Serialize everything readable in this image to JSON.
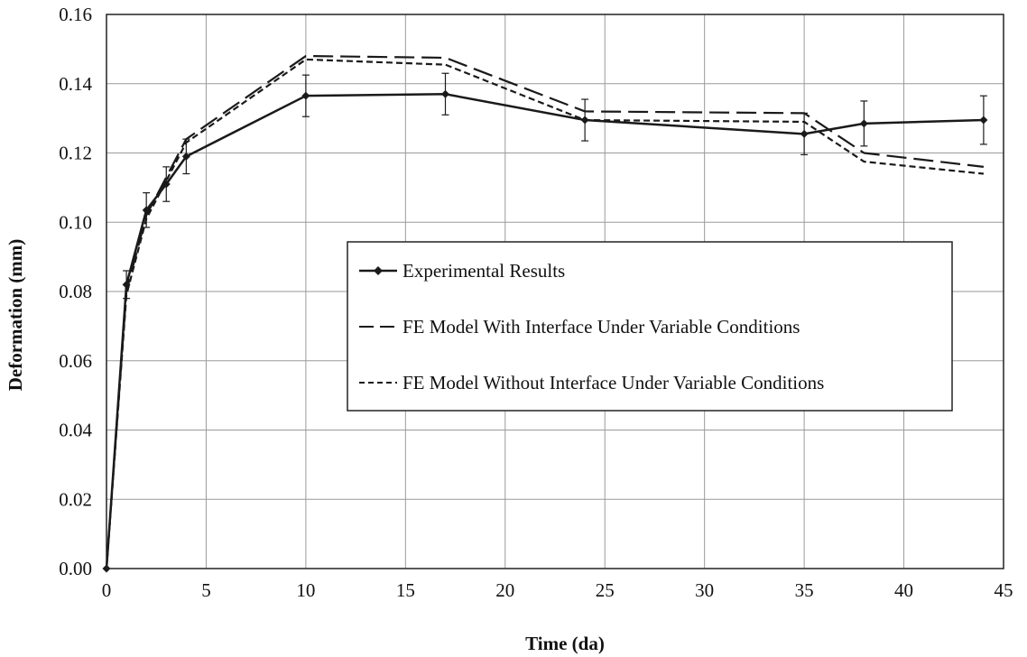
{
  "chart_data": {
    "type": "line",
    "title": "",
    "xlabel": "Time (da)",
    "ylabel": "Deformation (mm)",
    "xlim": [
      0,
      45
    ],
    "ylim": [
      0,
      0.16
    ],
    "x_ticks": [
      "0",
      "5",
      "10",
      "15",
      "20",
      "25",
      "30",
      "35",
      "40",
      "45"
    ],
    "y_ticks": [
      "0.00",
      "0.02",
      "0.04",
      "0.06",
      "0.08",
      "0.10",
      "0.12",
      "0.14",
      "0.16"
    ],
    "grid": true,
    "legend_position": "center-right",
    "series": [
      {
        "name": "Experimental Results",
        "style": "solid-with-markers",
        "color": "#1a1a1a",
        "x": [
          0,
          1,
          2,
          3,
          4,
          10,
          17,
          24,
          35,
          38,
          44
        ],
        "y": [
          0.0,
          0.082,
          0.1035,
          0.111,
          0.119,
          0.1365,
          0.137,
          0.1295,
          0.1255,
          0.1285,
          0.1295
        ],
        "error": [
          0,
          0.004,
          0.005,
          0.005,
          0.005,
          0.006,
          0.006,
          0.006,
          0.006,
          0.0065,
          0.007
        ]
      },
      {
        "name": "FE Model With Interface Under Variable Conditions",
        "style": "long-dash",
        "color": "#1a1a1a",
        "x": [
          0,
          1,
          2,
          3,
          4,
          10,
          17,
          24,
          35,
          38,
          44
        ],
        "y": [
          0.0,
          0.08,
          0.102,
          0.113,
          0.124,
          0.148,
          0.1475,
          0.132,
          0.1315,
          0.12,
          0.116
        ]
      },
      {
        "name": "FE Model Without Interface Under Variable Conditions",
        "style": "short-dash",
        "color": "#1a1a1a",
        "x": [
          0,
          1,
          2,
          3,
          4,
          10,
          17,
          24,
          35,
          38,
          44
        ],
        "y": [
          0.0,
          0.079,
          0.101,
          0.112,
          0.123,
          0.147,
          0.1455,
          0.1295,
          0.129,
          0.1175,
          0.114
        ]
      }
    ]
  }
}
